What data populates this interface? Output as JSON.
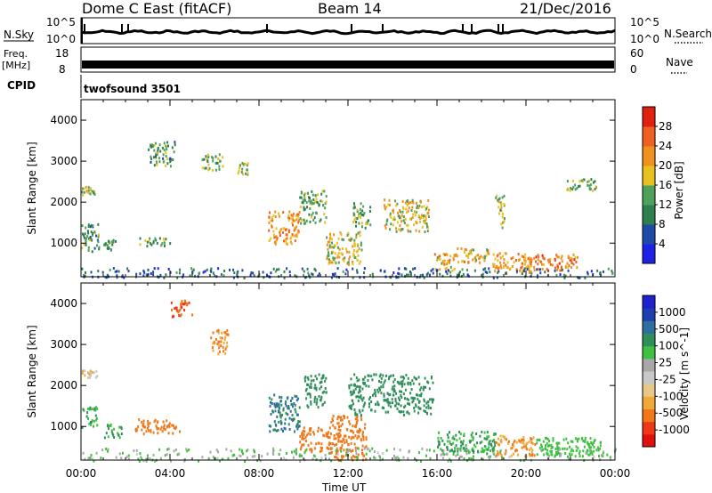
{
  "header": {
    "station": "Dome C East (fitACF)",
    "beam": "Beam 14",
    "date": "21/Dec/2016"
  },
  "panels": {
    "nsky": {
      "label": "N.Sky",
      "tick_top": "10^5",
      "tick_bottom": "10^0"
    },
    "nsearch": {
      "label": "N.Search",
      "tick_top": "10^5",
      "tick_bottom": "10^0"
    },
    "freq": {
      "label_line1": "Freq.",
      "label_line2": "[MHz]",
      "tick_top": "18",
      "tick_bottom": "8"
    },
    "nave": {
      "label": "Nave",
      "tick_top": "60",
      "tick_bottom": "0"
    },
    "cpid": {
      "label": "CPID",
      "value": "twofsound 3501"
    }
  },
  "colors": {
    "power_scale": [
      "#1e22e6",
      "#1f4aa8",
      "#2f7f4c",
      "#4fa05a",
      "#e8c020",
      "#f09020",
      "#f06020",
      "#e02010"
    ],
    "velocity_scale": [
      "#e01010",
      "#f03818",
      "#f07818",
      "#f0a838",
      "#e8c888",
      "#c8c8c8",
      "#a8a8a8",
      "#40c040",
      "#2f8f5a",
      "#2f6fa0",
      "#1f3fb0",
      "#1f20d0"
    ]
  },
  "chart_data": [
    {
      "type": "heatmap",
      "xlabel": "",
      "ylabel": "Slant Range [km]",
      "x_ticks": [
        "00:00",
        "04:00",
        "08:00",
        "12:00",
        "16:00",
        "20:00",
        "00:00"
      ],
      "y_ticks": [
        1000,
        2000,
        3000,
        4000
      ],
      "xlim": [
        0,
        24
      ],
      "ylim": [
        180,
        4500
      ],
      "colorbar": {
        "label": "Power [dB]",
        "ticks": [
          4,
          8,
          12,
          16,
          20,
          24,
          28
        ],
        "range": [
          0,
          32
        ]
      },
      "scatter_regions": [
        {
          "t": [
            0.0,
            0.6
          ],
          "r": [
            2200,
            2400
          ],
          "level": 16
        },
        {
          "t": [
            0.0,
            0.8
          ],
          "r": [
            800,
            1500
          ],
          "level": 12
        },
        {
          "t": [
            1.0,
            1.6
          ],
          "r": [
            850,
            1100
          ],
          "level": 12
        },
        {
          "t": [
            2.6,
            4.0
          ],
          "r": [
            950,
            1150
          ],
          "level": 14
        },
        {
          "t": [
            3.0,
            4.2
          ],
          "r": [
            2900,
            3500
          ],
          "level": 12
        },
        {
          "t": [
            5.4,
            6.4
          ],
          "r": [
            2800,
            3200
          ],
          "level": 14
        },
        {
          "t": [
            7.0,
            7.5
          ],
          "r": [
            2700,
            3000
          ],
          "level": 16
        },
        {
          "t": [
            8.4,
            9.8
          ],
          "r": [
            1000,
            1800
          ],
          "level": 22
        },
        {
          "t": [
            9.8,
            11.0
          ],
          "r": [
            1500,
            2300
          ],
          "level": 14
        },
        {
          "t": [
            11.0,
            12.6
          ],
          "r": [
            500,
            1300
          ],
          "level": 18
        },
        {
          "t": [
            12.2,
            13.0
          ],
          "r": [
            1400,
            2000
          ],
          "level": 14
        },
        {
          "t": [
            13.6,
            15.6
          ],
          "r": [
            1300,
            2100
          ],
          "level": 18
        },
        {
          "t": [
            15.8,
            16.8
          ],
          "r": [
            350,
            800
          ],
          "level": 20
        },
        {
          "t": [
            16.8,
            18.4
          ],
          "r": [
            550,
            900
          ],
          "level": 20
        },
        {
          "t": [
            18.4,
            20.4
          ],
          "r": [
            300,
            800
          ],
          "level": 22
        },
        {
          "t": [
            20.4,
            22.4
          ],
          "r": [
            350,
            750
          ],
          "level": 24
        },
        {
          "t": [
            18.6,
            19.0
          ],
          "r": [
            1400,
            2200
          ],
          "level": 16
        },
        {
          "t": [
            21.8,
            23.2
          ],
          "r": [
            2300,
            2600
          ],
          "level": 14
        },
        {
          "t": [
            0.0,
            24.0
          ],
          "r": [
            180,
            420
          ],
          "level": 8
        }
      ]
    },
    {
      "type": "heatmap",
      "xlabel": "Time UT",
      "ylabel": "Slant Range [km]",
      "x_ticks": [
        "00:00",
        "04:00",
        "08:00",
        "12:00",
        "16:00",
        "20:00",
        "00:00"
      ],
      "y_ticks": [
        1000,
        2000,
        3000,
        4000
      ],
      "xlim": [
        0,
        24
      ],
      "ylim": [
        180,
        4500
      ],
      "colorbar": {
        "label": "Velocity [m s^-1]",
        "ticks": [
          1000,
          500,
          100,
          25,
          -25,
          -100,
          -500,
          -1000
        ]
      },
      "scatter_regions": [
        {
          "t": [
            0.0,
            0.7
          ],
          "r": [
            1000,
            1500
          ],
          "level": 100
        },
        {
          "t": [
            0.0,
            0.7
          ],
          "r": [
            2200,
            2400
          ],
          "level": -25
        },
        {
          "t": [
            1.0,
            1.8
          ],
          "r": [
            750,
            1100
          ],
          "level": 100
        },
        {
          "t": [
            2.4,
            4.4
          ],
          "r": [
            850,
            1200
          ],
          "level": -300
        },
        {
          "t": [
            4.0,
            5.0
          ],
          "r": [
            3700,
            4100
          ],
          "level": -500
        },
        {
          "t": [
            5.8,
            6.6
          ],
          "r": [
            2800,
            3400
          ],
          "level": -100
        },
        {
          "t": [
            8.4,
            9.8
          ],
          "r": [
            900,
            1800
          ],
          "level": 300
        },
        {
          "t": [
            9.8,
            11.2
          ],
          "r": [
            400,
            1000
          ],
          "level": -200
        },
        {
          "t": [
            10.0,
            11.0
          ],
          "r": [
            1500,
            2300
          ],
          "level": 200
        },
        {
          "t": [
            11.2,
            12.8
          ],
          "r": [
            200,
            1300
          ],
          "level": -300
        },
        {
          "t": [
            12.0,
            15.8
          ],
          "r": [
            1300,
            2300
          ],
          "level": 200
        },
        {
          "t": [
            16.0,
            18.6
          ],
          "r": [
            350,
            900
          ],
          "level": 100
        },
        {
          "t": [
            18.6,
            20.4
          ],
          "r": [
            300,
            800
          ],
          "level": -100
        },
        {
          "t": [
            20.4,
            23.4
          ],
          "r": [
            300,
            750
          ],
          "level": 60
        },
        {
          "t": [
            0.0,
            24.0
          ],
          "r": [
            180,
            500
          ],
          "level": 25
        }
      ]
    }
  ]
}
